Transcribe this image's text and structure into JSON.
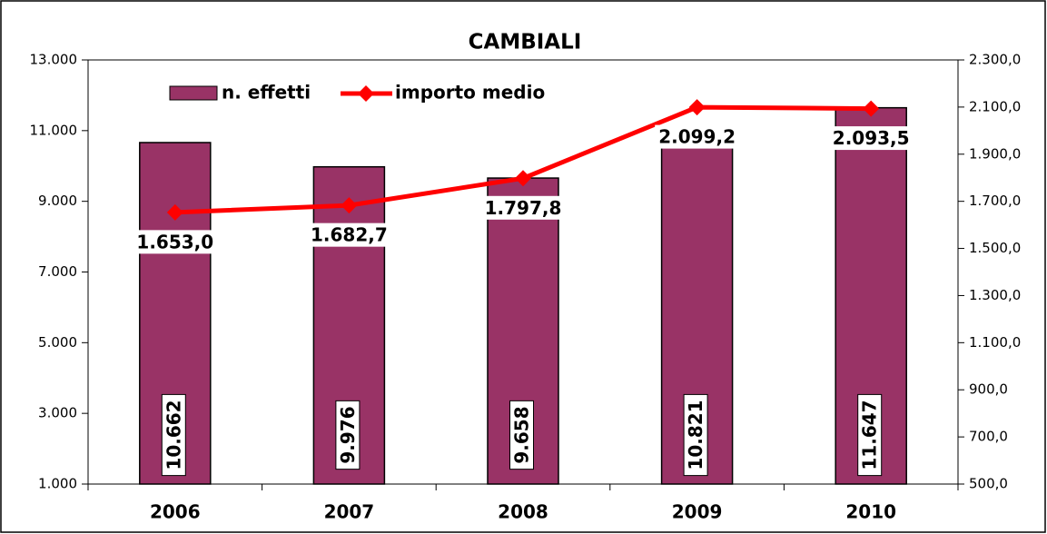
{
  "chart_data": {
    "type": "bar",
    "title": "CAMBIALI",
    "categories": [
      "2006",
      "2007",
      "2008",
      "2009",
      "2010"
    ],
    "series": [
      {
        "name": "n. effetti",
        "type": "bar",
        "color": "#993366",
        "values": [
          10662,
          9976,
          9658,
          10821,
          11647
        ],
        "value_labels": [
          "10.662",
          "9.976",
          "9.658",
          "10.821",
          "11.647"
        ]
      },
      {
        "name": "importo medio",
        "type": "line",
        "color": "#ff0000",
        "axis": "y2",
        "values": [
          1653.0,
          1682.7,
          1797.8,
          2099.2,
          2093.5
        ],
        "value_labels": [
          "1.653,0",
          "1.682,7",
          "1.797,8",
          "2.099,2",
          "2.093,5"
        ]
      }
    ],
    "ylim": [
      1000,
      13000
    ],
    "yticks": [
      {
        "value": 1000,
        "label": "1.000"
      },
      {
        "value": 3000,
        "label": "3.000"
      },
      {
        "value": 5000,
        "label": "5.000"
      },
      {
        "value": 7000,
        "label": "7.000"
      },
      {
        "value": 9000,
        "label": "9.000"
      },
      {
        "value": 11000,
        "label": "11.000"
      },
      {
        "value": 13000,
        "label": "13.000"
      }
    ],
    "y2lim": [
      500,
      2300
    ],
    "y2ticks": [
      {
        "value": 500,
        "label": "500,0"
      },
      {
        "value": 700,
        "label": "700,0"
      },
      {
        "value": 900,
        "label": "900,0"
      },
      {
        "value": 1100,
        "label": "1.100,0"
      },
      {
        "value": 1300,
        "label": "1.300,0"
      },
      {
        "value": 1500,
        "label": "1.500,0"
      },
      {
        "value": 1700,
        "label": "1.700,0"
      },
      {
        "value": 1900,
        "label": "1.900,0"
      },
      {
        "value": 2100,
        "label": "2.100,0"
      },
      {
        "value": 2300,
        "label": "2.300,0"
      }
    ],
    "grid": false,
    "legend": "top-left"
  }
}
